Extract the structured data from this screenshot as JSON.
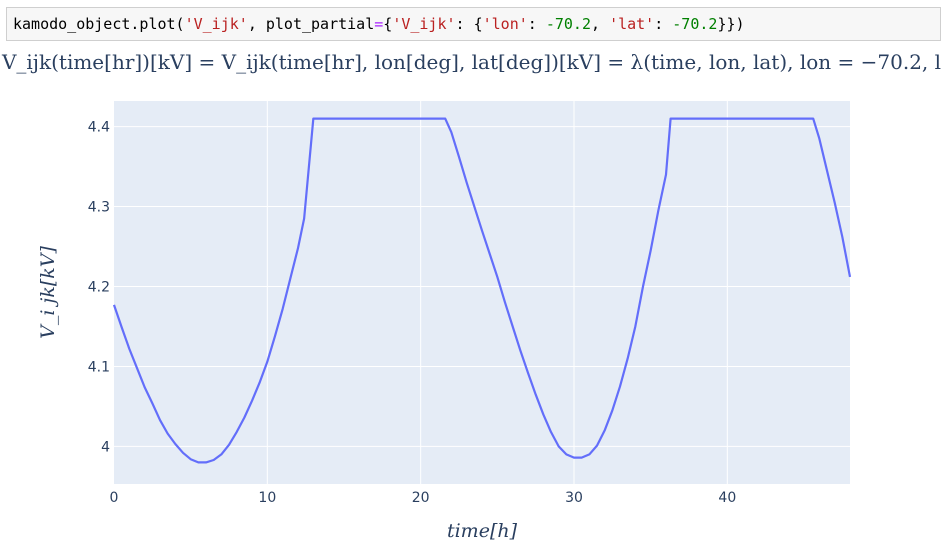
{
  "code_cell": {
    "prefix": "kamodo_object.plot(",
    "arg1": "'V_ijk'",
    "sep1": ", plot_partial",
    "eq": "=",
    "brace_open": "{",
    "key1": "'V_ijk'",
    "colon1": ": {",
    "key2": "'lon'",
    "colon2": ": ",
    "val2": "-70.2",
    "sep2": ", ",
    "key3": "'lat'",
    "colon3": ": ",
    "val3": "-70.2",
    "suffix": "}})"
  },
  "chart_data": {
    "type": "line",
    "title": "V_ijk(time[hr])[kV] = V_ijk(time[hr], lon[deg], lat[deg])[kV] = λ(time, lon, lat), lon = −70.2, l",
    "xlabel": "time[h]",
    "ylabel": "V_i jk[kV]",
    "xlim": [
      0,
      48
    ],
    "ylim": [
      3.953,
      4.432
    ],
    "xticks": [
      0,
      10,
      20,
      30,
      40
    ],
    "yticks": [
      4,
      4.1,
      4.2,
      4.3,
      4.4
    ],
    "ytick_labels": [
      "4",
      "4.1",
      "4.2",
      "4.3",
      "4.4"
    ],
    "grid": true,
    "line_color": "#636efa",
    "plot_bg": "#e5ecf6",
    "series": [
      {
        "x": [
          0,
          0.5,
          1,
          1.5,
          2,
          2.5,
          3,
          3.5,
          4,
          4.5,
          5,
          5.5,
          6,
          6.5,
          7,
          7.5,
          8,
          8.5,
          9,
          9.5,
          10,
          10.5,
          11,
          11.5,
          12,
          12.4,
          13,
          14,
          15,
          16,
          17,
          18,
          19,
          20,
          21,
          21.6,
          22,
          22.5,
          23,
          23.5,
          24,
          24.5,
          25,
          25.5,
          26,
          26.5,
          27,
          27.5,
          28,
          28.5,
          29,
          29.5,
          30,
          30.5,
          31,
          31.5,
          32,
          32.5,
          33,
          33.5,
          34,
          34.5,
          35,
          35.5,
          36,
          36.3,
          37,
          38,
          39,
          40,
          41,
          42,
          43,
          44,
          45,
          45.6,
          46,
          46.5,
          47,
          47.5,
          48
        ],
        "y": [
          4.177,
          4.149,
          4.122,
          4.098,
          4.074,
          4.054,
          4.033,
          4.016,
          4.003,
          3.992,
          3.984,
          3.98,
          3.98,
          3.983,
          3.99,
          4.002,
          4.018,
          4.036,
          4.057,
          4.08,
          4.106,
          4.138,
          4.172,
          4.21,
          4.248,
          4.285,
          4.41,
          4.41,
          4.41,
          4.41,
          4.41,
          4.41,
          4.41,
          4.41,
          4.41,
          4.41,
          4.393,
          4.362,
          4.33,
          4.3,
          4.27,
          4.241,
          4.212,
          4.18,
          4.15,
          4.12,
          4.092,
          4.065,
          4.04,
          4.018,
          4.0,
          3.99,
          3.986,
          3.986,
          3.99,
          4.001,
          4.02,
          4.045,
          4.075,
          4.11,
          4.15,
          4.2,
          4.245,
          4.295,
          4.34,
          4.41,
          4.41,
          4.41,
          4.41,
          4.41,
          4.41,
          4.41,
          4.41,
          4.41,
          4.41,
          4.41,
          4.385,
          4.345,
          4.305,
          4.262,
          4.212
        ]
      }
    ]
  }
}
